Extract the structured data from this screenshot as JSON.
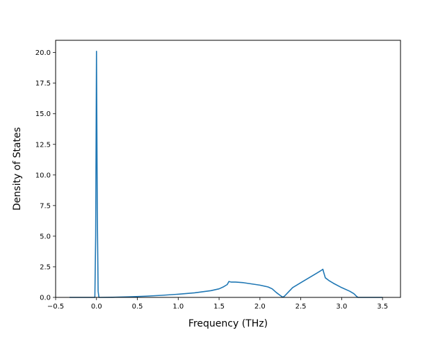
{
  "chart_data": {
    "type": "line",
    "title": "",
    "xlabel": "Frequency (THz)",
    "ylabel": "Density of States",
    "xlim": [
      -0.5,
      3.72
    ],
    "ylim": [
      0,
      21.0
    ],
    "xticks": [
      -0.5,
      0.0,
      0.5,
      1.0,
      1.5,
      2.0,
      2.5,
      3.0,
      3.5
    ],
    "xtick_labels": [
      "−0.5",
      "0.0",
      "0.5",
      "1.0",
      "1.5",
      "2.0",
      "2.5",
      "3.0",
      "3.5"
    ],
    "yticks": [
      0.0,
      2.5,
      5.0,
      7.5,
      10.0,
      12.5,
      15.0,
      17.5,
      20.0
    ],
    "ytick_labels": [
      "0.0",
      "2.5",
      "5.0",
      "7.5",
      "10.0",
      "12.5",
      "15.0",
      "17.5",
      "20.0"
    ],
    "grid": false,
    "legend": "none",
    "series": [
      {
        "color": "#1f77b4",
        "x": [
          -0.33,
          -0.02,
          -0.01,
          0.0,
          0.01,
          0.02,
          0.03,
          0.05,
          0.2,
          0.4,
          0.6,
          0.8,
          1.0,
          1.2,
          1.4,
          1.5,
          1.55,
          1.6,
          1.62,
          1.65,
          1.7,
          1.8,
          1.9,
          2.0,
          2.1,
          2.15,
          2.2,
          2.25,
          2.28,
          2.3,
          2.35,
          2.4,
          2.5,
          2.6,
          2.7,
          2.75,
          2.77,
          2.78,
          2.8,
          2.85,
          2.9,
          3.0,
          3.1,
          3.15,
          3.18,
          3.2,
          3.3,
          3.4,
          3.5
        ],
        "y": [
          0.0,
          0.0,
          5.0,
          20.1,
          7.0,
          0.5,
          0.0,
          0.0,
          0.01,
          0.05,
          0.1,
          0.17,
          0.26,
          0.37,
          0.55,
          0.7,
          0.85,
          1.05,
          1.3,
          1.25,
          1.25,
          1.2,
          1.1,
          1.0,
          0.85,
          0.7,
          0.4,
          0.15,
          0.02,
          0.1,
          0.45,
          0.8,
          1.2,
          1.6,
          2.0,
          2.2,
          2.3,
          2.05,
          1.6,
          1.35,
          1.15,
          0.8,
          0.5,
          0.3,
          0.1,
          0.0,
          0.0,
          0.0,
          0.0
        ]
      }
    ]
  }
}
